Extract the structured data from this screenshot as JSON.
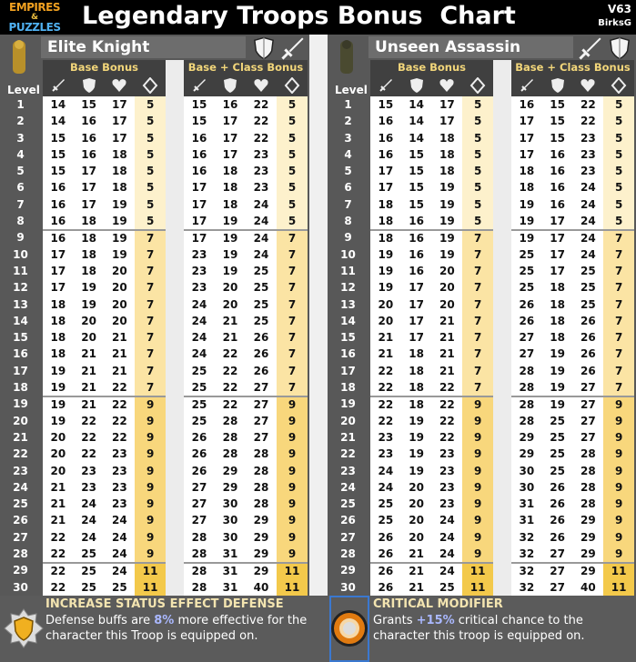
{
  "header": {
    "logo_text": "EMPIRES & PUZZLES",
    "title": "Legendary Troops Bonus  Chart",
    "version": "V63",
    "author": "BirksG"
  },
  "columns": {
    "level": "Level",
    "base": "Base Bonus",
    "class": "Base + Class Bonus",
    "stat_icons": [
      "sword-icon",
      "shield-icon",
      "heart-icon",
      "diamond-icon"
    ]
  },
  "colors": {
    "header_bg": "#000000",
    "panel_bg": "#585858",
    "caption": "#f2d67a",
    "bonus_tier1": "#fdf1cc",
    "bonus_tier2": "#fbe4a4",
    "bonus_tier3": "#f8d77c",
    "bonus_tier4": "#f3c94b",
    "highlight": "#aab8ff"
  },
  "troops": [
    {
      "name": "Elite Knight",
      "class_icons": [
        "shield-icon",
        "sword-icon"
      ],
      "rows": [
        [
          14,
          15,
          17,
          5,
          15,
          16,
          22,
          5
        ],
        [
          14,
          16,
          17,
          5,
          15,
          17,
          22,
          5
        ],
        [
          15,
          16,
          17,
          5,
          16,
          17,
          22,
          5
        ],
        [
          15,
          16,
          18,
          5,
          16,
          17,
          23,
          5
        ],
        [
          15,
          17,
          18,
          5,
          16,
          18,
          23,
          5
        ],
        [
          16,
          17,
          18,
          5,
          17,
          18,
          23,
          5
        ],
        [
          16,
          17,
          19,
          5,
          17,
          18,
          24,
          5
        ],
        [
          16,
          18,
          19,
          5,
          17,
          19,
          24,
          5
        ],
        [
          16,
          18,
          19,
          7,
          17,
          19,
          24,
          7
        ],
        [
          17,
          18,
          19,
          7,
          23,
          19,
          24,
          7
        ],
        [
          17,
          18,
          20,
          7,
          23,
          19,
          25,
          7
        ],
        [
          17,
          19,
          20,
          7,
          23,
          20,
          25,
          7
        ],
        [
          18,
          19,
          20,
          7,
          24,
          20,
          25,
          7
        ],
        [
          18,
          20,
          20,
          7,
          24,
          21,
          25,
          7
        ],
        [
          18,
          20,
          21,
          7,
          24,
          21,
          26,
          7
        ],
        [
          18,
          21,
          21,
          7,
          24,
          22,
          26,
          7
        ],
        [
          19,
          21,
          21,
          7,
          25,
          22,
          26,
          7
        ],
        [
          19,
          21,
          22,
          7,
          25,
          22,
          27,
          7
        ],
        [
          19,
          21,
          22,
          9,
          25,
          22,
          27,
          9
        ],
        [
          19,
          22,
          22,
          9,
          25,
          28,
          27,
          9
        ],
        [
          20,
          22,
          22,
          9,
          26,
          28,
          27,
          9
        ],
        [
          20,
          22,
          23,
          9,
          26,
          28,
          28,
          9
        ],
        [
          20,
          23,
          23,
          9,
          26,
          29,
          28,
          9
        ],
        [
          21,
          23,
          23,
          9,
          27,
          29,
          28,
          9
        ],
        [
          21,
          24,
          23,
          9,
          27,
          30,
          28,
          9
        ],
        [
          21,
          24,
          24,
          9,
          27,
          30,
          29,
          9
        ],
        [
          22,
          24,
          24,
          9,
          28,
          30,
          29,
          9
        ],
        [
          22,
          25,
          24,
          9,
          28,
          31,
          29,
          9
        ],
        [
          22,
          25,
          24,
          11,
          28,
          31,
          29,
          11
        ],
        [
          22,
          25,
          25,
          11,
          28,
          31,
          40,
          11
        ]
      ],
      "skill": {
        "title": "INCREASE STATUS EFFECT DEFENSE",
        "text_pre": "Defense buffs are ",
        "highlight": "8%",
        "text_post": " more effective for the character this Troop is equipped on."
      }
    },
    {
      "name": "Unseen Assassin",
      "class_icons": [
        "sword-icon",
        "shield-icon"
      ],
      "rows": [
        [
          15,
          14,
          17,
          5,
          16,
          15,
          22,
          5
        ],
        [
          16,
          14,
          17,
          5,
          17,
          15,
          22,
          5
        ],
        [
          16,
          14,
          18,
          5,
          17,
          15,
          23,
          5
        ],
        [
          16,
          15,
          18,
          5,
          17,
          16,
          23,
          5
        ],
        [
          17,
          15,
          18,
          5,
          18,
          16,
          23,
          5
        ],
        [
          17,
          15,
          19,
          5,
          18,
          16,
          24,
          5
        ],
        [
          18,
          15,
          19,
          5,
          19,
          16,
          24,
          5
        ],
        [
          18,
          16,
          19,
          5,
          19,
          17,
          24,
          5
        ],
        [
          18,
          16,
          19,
          7,
          19,
          17,
          24,
          7
        ],
        [
          19,
          16,
          19,
          7,
          25,
          17,
          24,
          7
        ],
        [
          19,
          16,
          20,
          7,
          25,
          17,
          25,
          7
        ],
        [
          19,
          17,
          20,
          7,
          25,
          18,
          25,
          7
        ],
        [
          20,
          17,
          20,
          7,
          26,
          18,
          25,
          7
        ],
        [
          20,
          17,
          21,
          7,
          26,
          18,
          26,
          7
        ],
        [
          21,
          17,
          21,
          7,
          27,
          18,
          26,
          7
        ],
        [
          21,
          18,
          21,
          7,
          27,
          19,
          26,
          7
        ],
        [
          22,
          18,
          21,
          7,
          28,
          19,
          26,
          7
        ],
        [
          22,
          18,
          22,
          7,
          28,
          19,
          27,
          7
        ],
        [
          22,
          18,
          22,
          9,
          28,
          19,
          27,
          9
        ],
        [
          22,
          19,
          22,
          9,
          28,
          25,
          27,
          9
        ],
        [
          23,
          19,
          22,
          9,
          29,
          25,
          27,
          9
        ],
        [
          23,
          19,
          23,
          9,
          29,
          25,
          28,
          9
        ],
        [
          24,
          19,
          23,
          9,
          30,
          25,
          28,
          9
        ],
        [
          24,
          20,
          23,
          9,
          30,
          26,
          28,
          9
        ],
        [
          25,
          20,
          23,
          9,
          31,
          26,
          28,
          9
        ],
        [
          25,
          20,
          24,
          9,
          31,
          26,
          29,
          9
        ],
        [
          26,
          20,
          24,
          9,
          32,
          26,
          29,
          9
        ],
        [
          26,
          21,
          24,
          9,
          32,
          27,
          29,
          9
        ],
        [
          26,
          21,
          24,
          11,
          32,
          27,
          29,
          11
        ],
        [
          26,
          21,
          25,
          11,
          32,
          27,
          40,
          11
        ]
      ],
      "skill": {
        "title": "CRITICAL MODIFIER",
        "text_pre": "Grants ",
        "highlight": "+15%",
        "text_post": " critical chance to the character this troop is equipped on."
      }
    }
  ]
}
